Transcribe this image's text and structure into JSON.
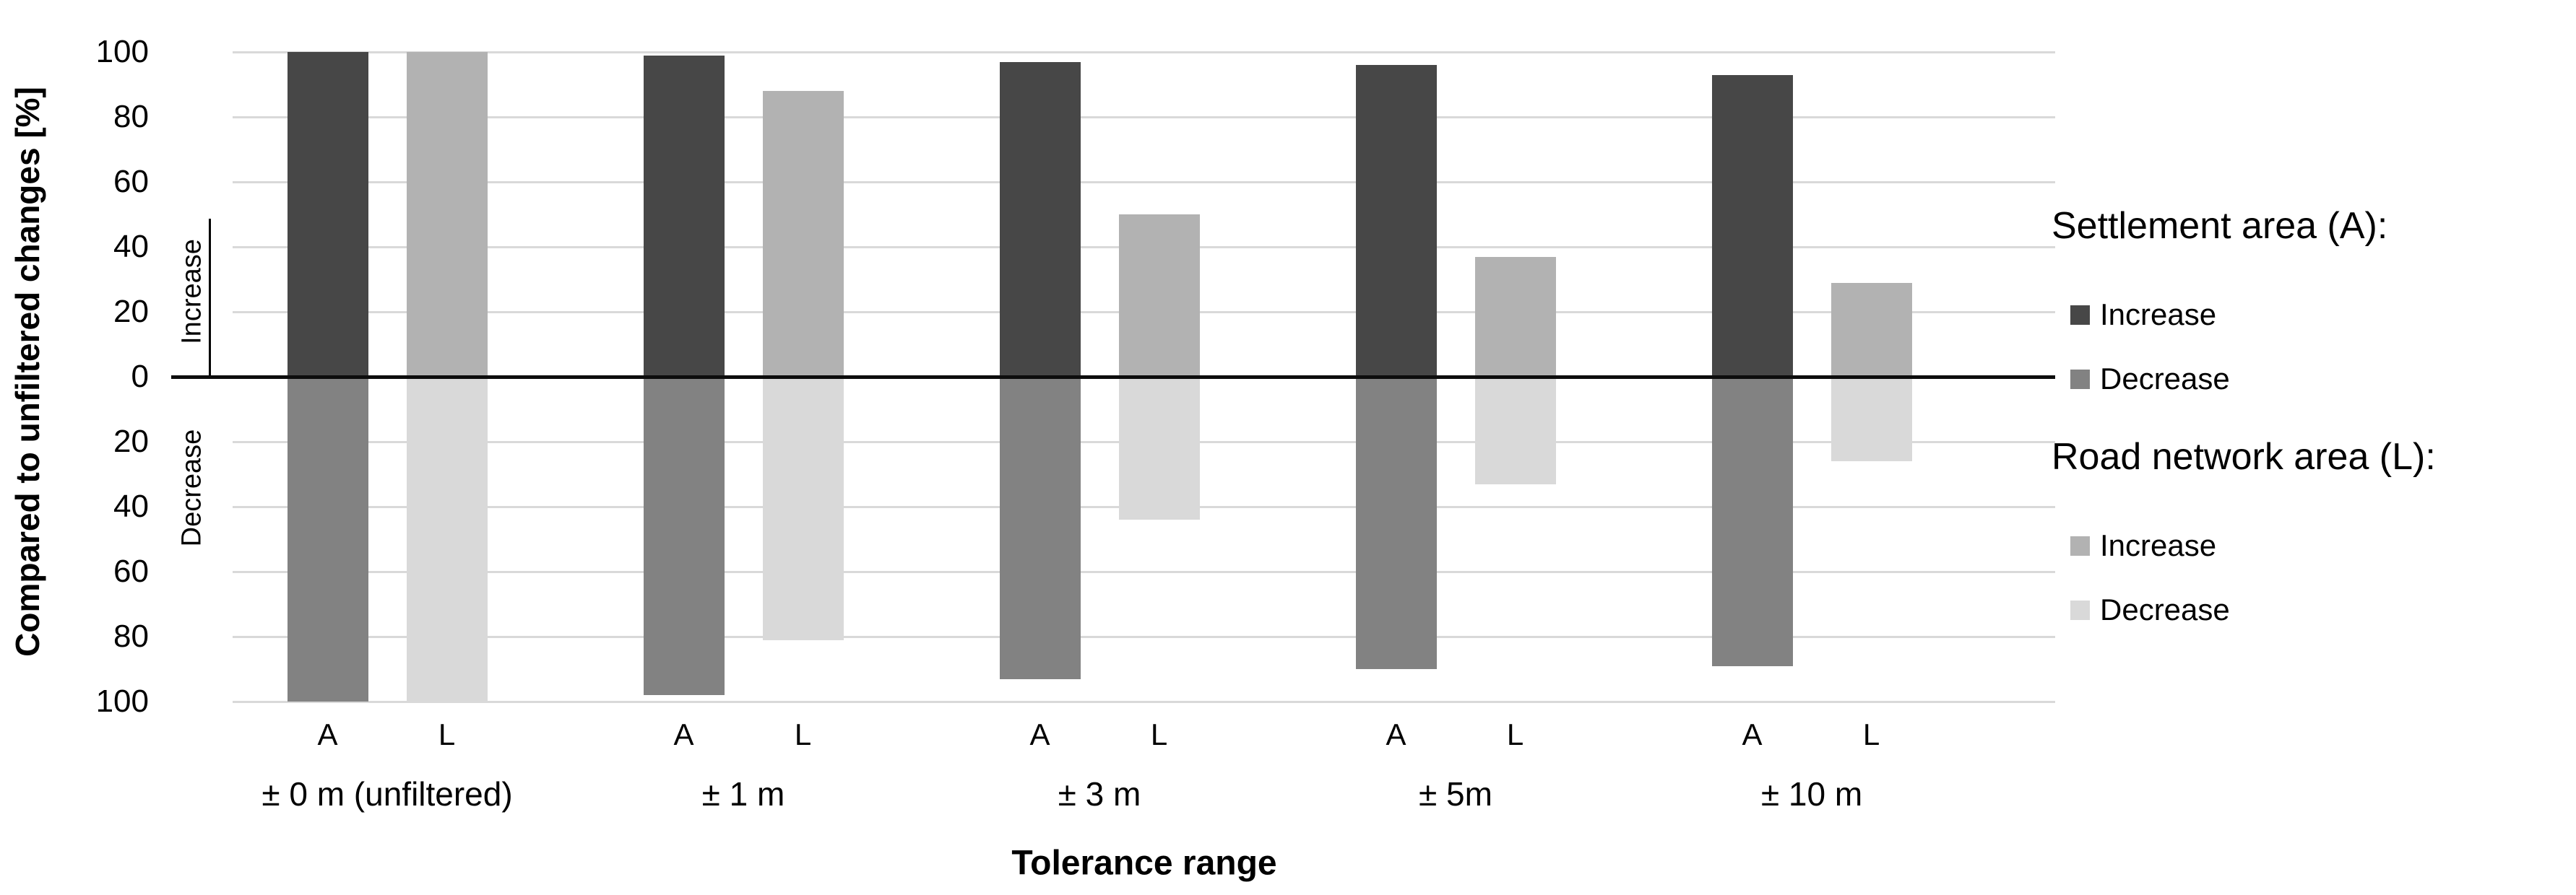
{
  "chart_data": {
    "type": "bar",
    "title": "",
    "xlabel": "Tolerance range",
    "ylabel": "Compared to unfiltered changes [%]",
    "ylim": [
      -100,
      100
    ],
    "grid": true,
    "y_tick_values": [
      100,
      80,
      60,
      40,
      20,
      0,
      20,
      40,
      60,
      80,
      100
    ],
    "upper_half_label": "Increase",
    "lower_half_label": "Decrease",
    "categories": [
      "± 0 m (unfiltered)",
      "± 1 m",
      "± 3 m",
      "± 5m",
      "± 10 m"
    ],
    "bar_sublabels": [
      "A",
      "L"
    ],
    "series": [
      {
        "name": "Settlement area (A) Increase",
        "direction": "up",
        "bar": "A",
        "color": "#474747",
        "values": [
          100,
          99,
          97,
          96,
          93
        ]
      },
      {
        "name": "Settlement area (A) Decrease",
        "direction": "down",
        "bar": "A",
        "color": "#828282",
        "values": [
          100,
          98,
          93,
          90,
          89
        ]
      },
      {
        "name": "Road network area (L) Increase",
        "direction": "up",
        "bar": "L",
        "color": "#b2b2b2",
        "values": [
          100,
          88,
          50,
          37,
          29
        ]
      },
      {
        "name": "Road network area (L) Decrease",
        "direction": "down",
        "bar": "L",
        "color": "#d9d9d9",
        "values": [
          100,
          81,
          44,
          33,
          26
        ]
      }
    ],
    "legend_position": "right"
  },
  "legend": {
    "blocks": [
      {
        "title": "Settlement area (A):",
        "items": [
          {
            "label": "Increase",
            "color": "#474747"
          },
          {
            "label": "Decrease",
            "color": "#828282"
          }
        ]
      },
      {
        "title": "Road network area (L):",
        "items": [
          {
            "label": "Increase",
            "color": "#b2b2b2"
          },
          {
            "label": "Decrease",
            "color": "#d9d9d9"
          }
        ]
      }
    ]
  },
  "colors": {
    "gridline": "#d9d9d9",
    "zero_line": "#0d0d0d",
    "text": "#000000",
    "background": "#ffffff"
  }
}
